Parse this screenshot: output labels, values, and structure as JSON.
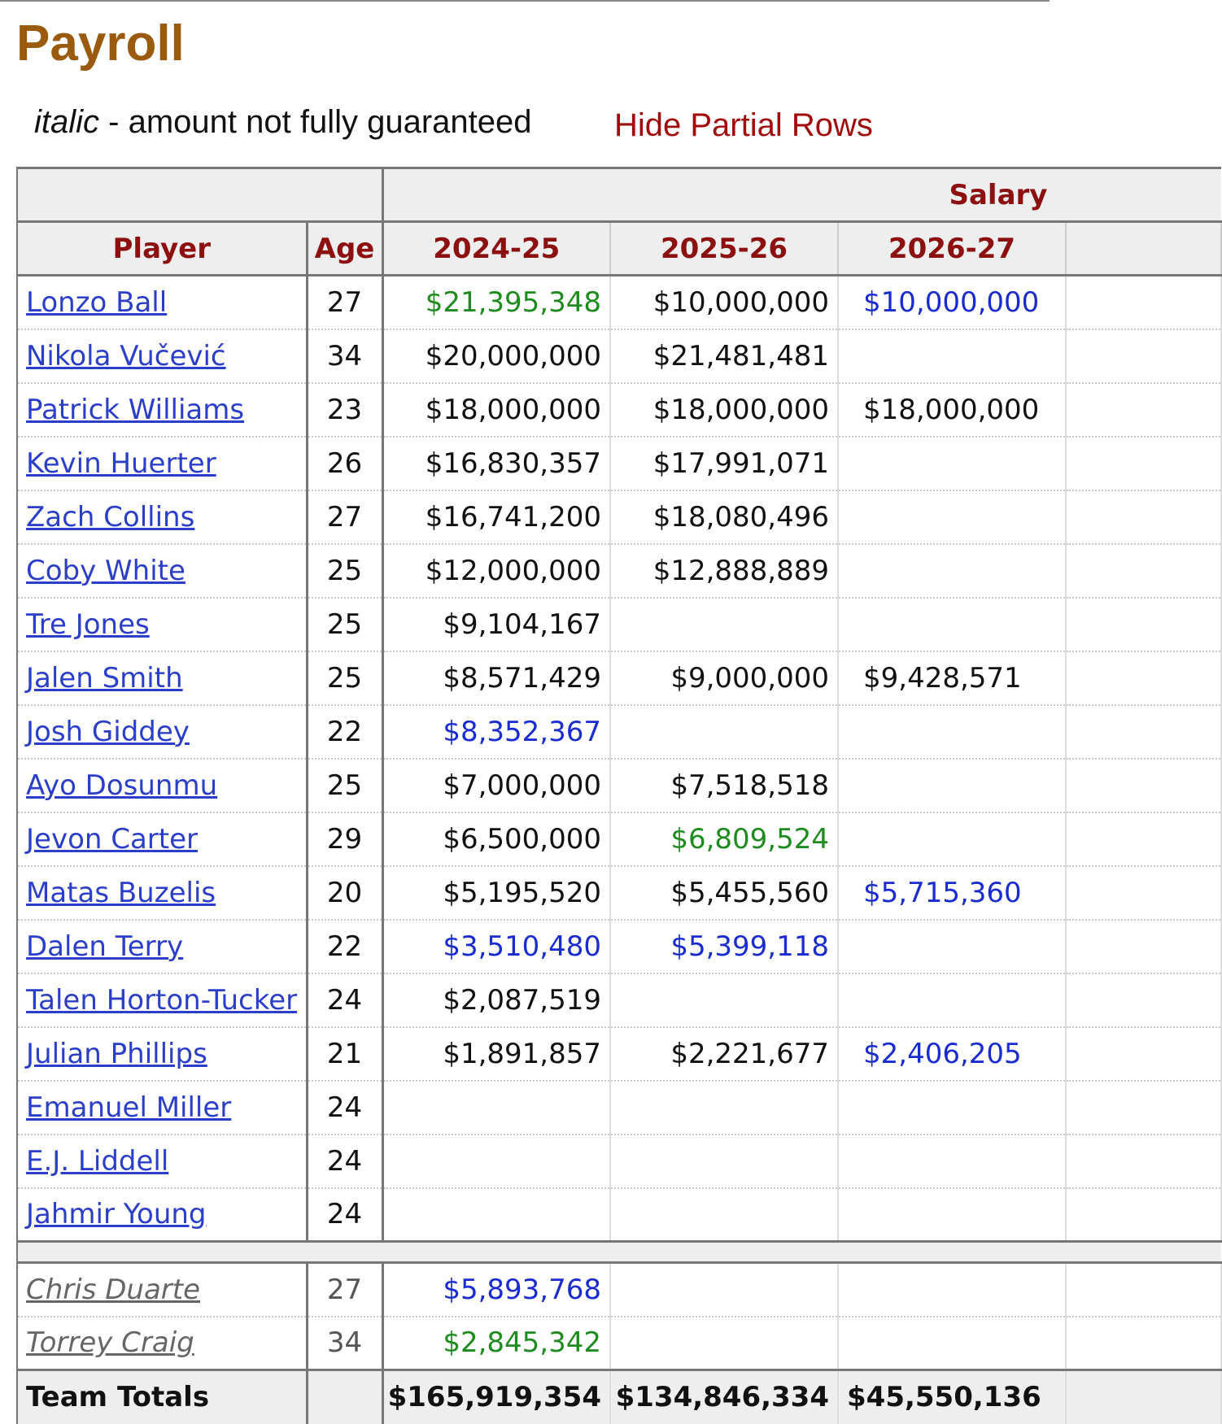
{
  "page": {
    "title": "Payroll",
    "note_italic": "italic",
    "note_rest": " - amount not fully guaranteed",
    "hide_link": "Hide Partial Rows"
  },
  "table": {
    "group_header": "Salary",
    "headers": {
      "player": "Player",
      "age": "Age",
      "season1": "2024-25",
      "season2": "2025-26",
      "season3": "2026-27"
    },
    "rows": [
      {
        "player": "Lonzo Ball",
        "age": "27",
        "s1": "$21,395,348",
        "s1c": "green",
        "s2": "$10,000,000",
        "s2c": "",
        "s3": "$10,000,000",
        "s3c": "blue"
      },
      {
        "player": "Nikola Vučević",
        "age": "34",
        "s1": "$20,000,000",
        "s1c": "",
        "s2": "$21,481,481",
        "s2c": "",
        "s3": "",
        "s3c": ""
      },
      {
        "player": "Patrick Williams",
        "age": "23",
        "s1": "$18,000,000",
        "s1c": "",
        "s2": "$18,000,000",
        "s2c": "",
        "s3": "$18,000,000",
        "s3c": ""
      },
      {
        "player": "Kevin Huerter",
        "age": "26",
        "s1": "$16,830,357",
        "s1c": "",
        "s2": "$17,991,071",
        "s2c": "",
        "s3": "",
        "s3c": ""
      },
      {
        "player": "Zach Collins",
        "age": "27",
        "s1": "$16,741,200",
        "s1c": "",
        "s2": "$18,080,496",
        "s2c": "",
        "s3": "",
        "s3c": ""
      },
      {
        "player": "Coby White",
        "age": "25",
        "s1": "$12,000,000",
        "s1c": "",
        "s2": "$12,888,889",
        "s2c": "",
        "s3": "",
        "s3c": ""
      },
      {
        "player": "Tre Jones",
        "age": "25",
        "s1": "$9,104,167",
        "s1c": "",
        "s2": "",
        "s2c": "",
        "s3": "",
        "s3c": ""
      },
      {
        "player": "Jalen Smith",
        "age": "25",
        "s1": "$8,571,429",
        "s1c": "",
        "s2": "$9,000,000",
        "s2c": "",
        "s3": "$9,428,571",
        "s3c": ""
      },
      {
        "player": "Josh Giddey",
        "age": "22",
        "s1": "$8,352,367",
        "s1c": "blue",
        "s2": "",
        "s2c": "",
        "s3": "",
        "s3c": ""
      },
      {
        "player": "Ayo Dosunmu",
        "age": "25",
        "s1": "$7,000,000",
        "s1c": "",
        "s2": "$7,518,518",
        "s2c": "",
        "s3": "",
        "s3c": ""
      },
      {
        "player": "Jevon Carter",
        "age": "29",
        "s1": "$6,500,000",
        "s1c": "",
        "s2": "$6,809,524",
        "s2c": "green",
        "s3": "",
        "s3c": ""
      },
      {
        "player": "Matas Buzelis",
        "age": "20",
        "s1": "$5,195,520",
        "s1c": "",
        "s2": "$5,455,560",
        "s2c": "",
        "s3": "$5,715,360",
        "s3c": "blue"
      },
      {
        "player": "Dalen Terry",
        "age": "22",
        "s1": "$3,510,480",
        "s1c": "blue",
        "s2": "$5,399,118",
        "s2c": "blue",
        "s3": "",
        "s3c": ""
      },
      {
        "player": "Talen Horton-Tucker",
        "age": "24",
        "s1": "$2,087,519",
        "s1c": "",
        "s2": "",
        "s2c": "",
        "s3": "",
        "s3c": ""
      },
      {
        "player": "Julian Phillips",
        "age": "21",
        "s1": "$1,891,857",
        "s1c": "",
        "s2": "$2,221,677",
        "s2c": "",
        "s3": "$2,406,205",
        "s3c": "blue"
      },
      {
        "player": "Emanuel Miller",
        "age": "24",
        "s1": "",
        "s1c": "",
        "s2": "",
        "s2c": "",
        "s3": "",
        "s3c": ""
      },
      {
        "player": "E.J. Liddell",
        "age": "24",
        "s1": "",
        "s1c": "",
        "s2": "",
        "s2c": "",
        "s3": "",
        "s3c": ""
      },
      {
        "player": "Jahmir Young",
        "age": "24",
        "s1": "",
        "s1c": "",
        "s2": "",
        "s2c": "",
        "s3": "",
        "s3c": ""
      }
    ],
    "partial_rows": [
      {
        "player": "Chris Duarte",
        "age": "27",
        "s1": "$5,893,768",
        "s1c": "blue",
        "s2": "",
        "s2c": "",
        "s3": "",
        "s3c": ""
      },
      {
        "player": "Torrey Craig",
        "age": "34",
        "s1": "$2,845,342",
        "s1c": "green",
        "s2": "",
        "s2c": "",
        "s3": "",
        "s3c": ""
      }
    ],
    "totals": {
      "label": "Team Totals",
      "s1": "$165,919,354",
      "s2": "$134,846,334",
      "s3": "$45,550,136"
    },
    "colors": {
      "green": "#1f8a1f",
      "blue": "#1a2bd0",
      "header_red": "#8c1010",
      "title_brown": "#9a5b0e"
    }
  }
}
